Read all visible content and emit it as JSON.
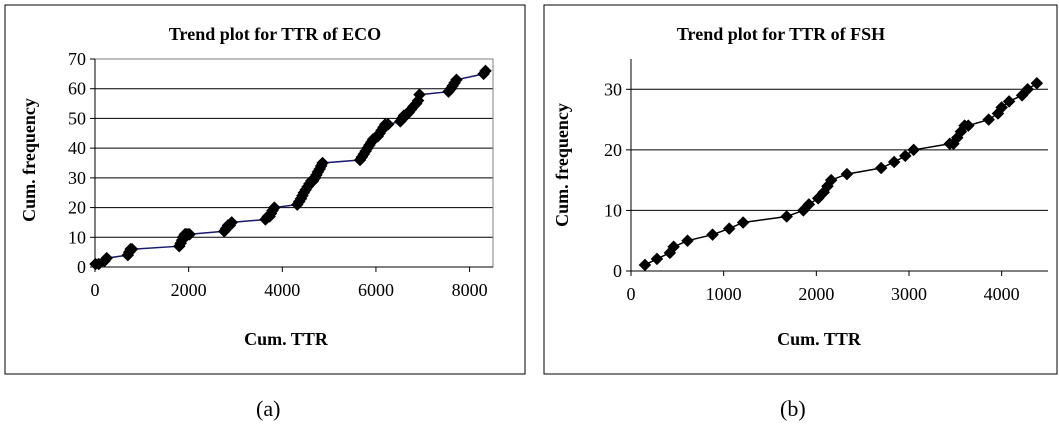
{
  "chart_data": [
    {
      "type": "line",
      "title": "Trend plot  for TTR of ECO",
      "xlabel": "Cum. TTR",
      "ylabel": "Cum. frequency",
      "xlim": [
        0,
        8500
      ],
      "ylim": [
        0,
        70
      ],
      "xticks": [
        0,
        2000,
        4000,
        6000,
        8000
      ],
      "yticks": [
        0,
        10,
        20,
        30,
        40,
        50,
        60,
        70
      ],
      "grid": "horizontal",
      "line_color": "#1a1a6b",
      "marker": "diamond",
      "caption": "(a)",
      "series": [
        {
          "x": [
            10,
            80,
            200,
            250,
            700,
            730,
            760,
            790,
            1800,
            1830,
            1860,
            1880,
            1900,
            1920,
            1940,
            1960,
            1990,
            2020,
            2760,
            2800,
            2840,
            2880,
            2920,
            3640,
            3690,
            3730,
            3760,
            3790,
            3830,
            4320,
            4360,
            4400,
            4430,
            4460,
            4500,
            4540,
            4580,
            4620,
            4660,
            4700,
            4730,
            4760,
            4800,
            4830,
            4860,
            5660,
            5700,
            5740,
            5780,
            5820,
            5860,
            5900,
            5940,
            6040,
            6080,
            6120,
            6160,
            6200,
            6260,
            6520,
            6560,
            6600,
            6640,
            6700,
            6750,
            6800,
            6860,
            6900,
            6930,
            7550,
            7600,
            7640,
            7680,
            7720,
            8300,
            8340
          ],
          "y": [
            1,
            1,
            2,
            3,
            4,
            5,
            6,
            6,
            7,
            8,
            9,
            10,
            10,
            11,
            11,
            11,
            11,
            11,
            12,
            13,
            14,
            14,
            15,
            16,
            17,
            17,
            18,
            19,
            20,
            21,
            22,
            23,
            24,
            25,
            26,
            27,
            28,
            29,
            29,
            30,
            31,
            32,
            33,
            34,
            35,
            36,
            37,
            38,
            39,
            40,
            41,
            42,
            43,
            44,
            45,
            46,
            47,
            48,
            48,
            49,
            50,
            51,
            51,
            52,
            53,
            54,
            55,
            56,
            58,
            59,
            60,
            61,
            62,
            63,
            65,
            66
          ]
        }
      ]
    },
    {
      "type": "line",
      "title": "Trend plot for TTR of FSH",
      "xlabel": "Cum. TTR",
      "ylabel": "Cum. frequency",
      "xlim": [
        0,
        4500
      ],
      "ylim": [
        0,
        35
      ],
      "xticks": [
        0,
        1000,
        2000,
        3000,
        4000
      ],
      "yticks": [
        0,
        10,
        20,
        30
      ],
      "grid": "horizontal",
      "line_color": "#000000",
      "marker": "diamond",
      "caption": "(b)",
      "series": [
        {
          "x": [
            150,
            280,
            420,
            460,
            610,
            880,
            1060,
            1210,
            1680,
            1860,
            1920,
            2020,
            2080,
            2120,
            2160,
            2330,
            2700,
            2840,
            2960,
            3050,
            3440,
            3480,
            3520,
            3560,
            3600,
            3640,
            3860,
            3960,
            4000,
            4080,
            4220,
            4280,
            4380
          ],
          "y": [
            1,
            2,
            3,
            4,
            5,
            6,
            7,
            8,
            9,
            10,
            11,
            12,
            13,
            14,
            15,
            16,
            17,
            18,
            19,
            20,
            21,
            21,
            22,
            23,
            24,
            24,
            25,
            26,
            27,
            28,
            29,
            30,
            31
          ]
        }
      ]
    }
  ]
}
